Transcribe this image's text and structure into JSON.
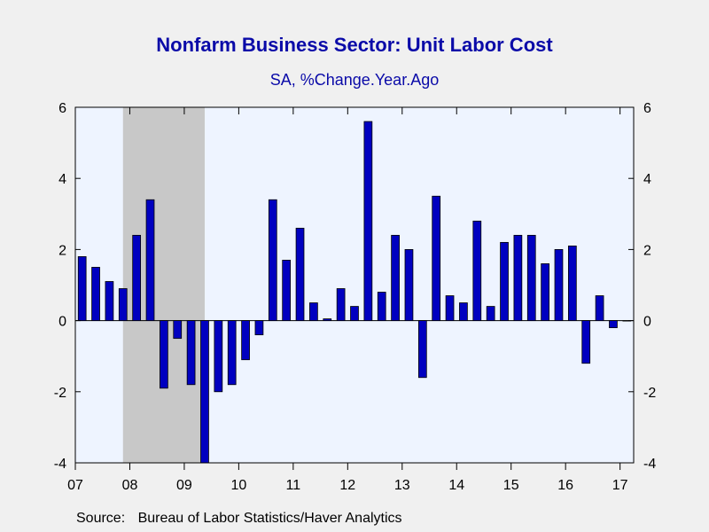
{
  "title": "Nonfarm Business Sector: Unit Labor Cost",
  "subtitle": "SA, %Change.Year.Ago",
  "source_label": "Source:",
  "source_text": "Bureau of Labor Statistics/Haver Analytics",
  "colors": {
    "bar": "#0000c0",
    "plot_background": "#eef4ff",
    "recession": "#c8c8c8",
    "title": "#0a0aa8"
  },
  "chart_data": {
    "type": "bar",
    "title": "Nonfarm Business Sector: Unit Labor Cost",
    "subtitle": "SA, %Change.Year.Ago",
    "frequency": "quarterly",
    "x_tick_labels": [
      "07",
      "08",
      "09",
      "10",
      "11",
      "12",
      "13",
      "14",
      "15",
      "16",
      "17"
    ],
    "x_tick_years": [
      2007,
      2008,
      2009,
      2010,
      2011,
      2012,
      2013,
      2014,
      2015,
      2016,
      2017
    ],
    "categories": [
      "2007Q1",
      "2007Q2",
      "2007Q3",
      "2007Q4",
      "2008Q1",
      "2008Q2",
      "2008Q3",
      "2008Q4",
      "2009Q1",
      "2009Q2",
      "2009Q3",
      "2009Q4",
      "2010Q1",
      "2010Q2",
      "2010Q3",
      "2010Q4",
      "2011Q1",
      "2011Q2",
      "2011Q3",
      "2011Q4",
      "2012Q1",
      "2012Q2",
      "2012Q3",
      "2012Q4",
      "2013Q1",
      "2013Q2",
      "2013Q3",
      "2013Q4",
      "2014Q1",
      "2014Q2",
      "2014Q3",
      "2014Q4",
      "2015Q1",
      "2015Q2",
      "2015Q3",
      "2015Q4",
      "2016Q1",
      "2016Q2",
      "2016Q3",
      "2016Q4",
      "2017Q1"
    ],
    "values": [
      1.8,
      1.5,
      1.1,
      0.9,
      2.4,
      3.4,
      -1.9,
      -0.5,
      -1.8,
      -4.0,
      -2.0,
      -1.8,
      -1.1,
      -0.4,
      3.4,
      1.7,
      2.6,
      0.5,
      0.05,
      0.9,
      0.4,
      5.6,
      0.8,
      2.4,
      2.0,
      -1.6,
      3.5,
      0.7,
      0.5,
      2.8,
      0.4,
      2.2,
      2.4,
      2.4,
      1.6,
      2.0,
      2.1,
      -1.2,
      0.7,
      -0.2,
      0.0
    ],
    "ylim": [
      -4,
      6
    ],
    "y_ticks": [
      -4,
      -2,
      0,
      2,
      4,
      6
    ],
    "y_tick_labels": [
      "-4",
      "-2",
      "0",
      "2",
      "4",
      "6"
    ],
    "recession_shading": [
      "2007Q4",
      "2009Q2"
    ],
    "grid": false,
    "legend": "none",
    "dual_y_axis": true
  }
}
